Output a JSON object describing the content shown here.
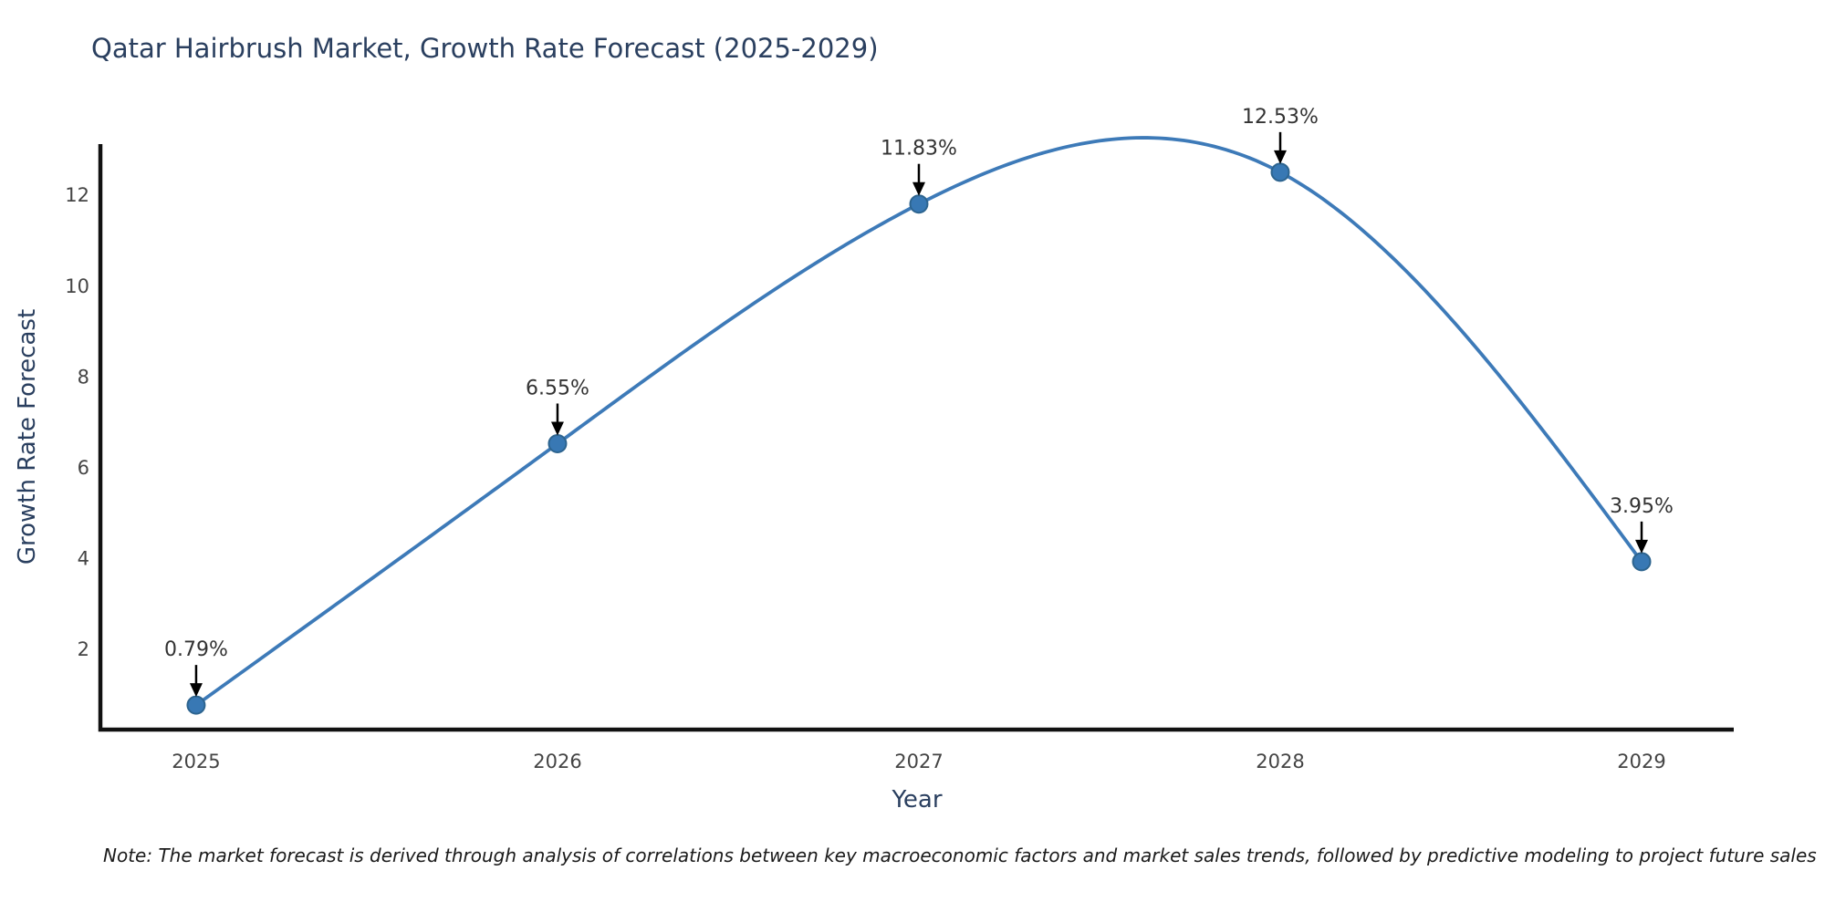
{
  "title": "Qatar Hairbrush Market, Growth Rate Forecast (2025-2029)",
  "note": "Note: The market forecast is derived through analysis of correlations between key macroeconomic factors and market sales trends, followed by predictive modeling to project future sales",
  "chart_data": {
    "type": "line",
    "title": "Qatar Hairbrush Market, Growth Rate Forecast (2025-2029)",
    "xlabel": "Year",
    "ylabel": "Growth Rate Forecast",
    "x": [
      2025,
      2026,
      2027,
      2028,
      2029
    ],
    "values": [
      0.79,
      6.55,
      11.83,
      12.53,
      3.95
    ],
    "point_labels": [
      "0.79%",
      "6.55%",
      "11.83%",
      "12.53%",
      "3.95%"
    ],
    "xticks": [
      "2025",
      "2026",
      "2027",
      "2028",
      "2029"
    ],
    "yticks": [
      2,
      4,
      6,
      8,
      10,
      12
    ],
    "xlim": [
      2024.735,
      2029.255
    ],
    "ylim": [
      0.25,
      13.15
    ],
    "smooth_spline": true,
    "grid": false,
    "legend": false,
    "colors": {
      "line": "#3d7ab8",
      "marker_fill": "#3878b4",
      "marker_edge": "#2d648f",
      "axis": "#111111",
      "tick_label": "#444444",
      "title": "#2a3f5f",
      "annotation": "#333333",
      "arrow": "#000000"
    }
  }
}
